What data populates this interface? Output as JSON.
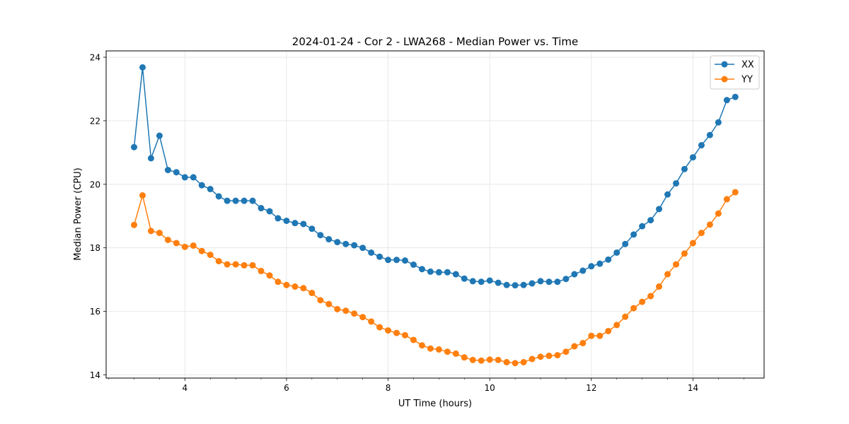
{
  "chart_data": {
    "type": "line",
    "title": "2024-01-24 - Cor 2 - LWA268 - Median Power vs. Time",
    "xlabel": "UT Time (hours)",
    "ylabel": "Median Power (CPU)",
    "xlim": [
      2.45,
      15.4
    ],
    "ylim": [
      13.9,
      24.2
    ],
    "xticks": [
      4,
      6,
      8,
      10,
      12,
      14
    ],
    "xtick_labels": [
      "4",
      "6",
      "8",
      "10",
      "12",
      "14"
    ],
    "xminor_step": 0.5,
    "yticks": [
      14,
      16,
      18,
      20,
      22,
      24
    ],
    "ytick_labels": [
      "14",
      "16",
      "18",
      "20",
      "22",
      "24"
    ],
    "grid": true,
    "legend_position": "top-right",
    "x": [
      3.0,
      3.167,
      3.333,
      3.5,
      3.667,
      3.833,
      4.0,
      4.167,
      4.333,
      4.5,
      4.667,
      4.833,
      5.0,
      5.167,
      5.333,
      5.5,
      5.667,
      5.833,
      6.0,
      6.167,
      6.333,
      6.5,
      6.667,
      6.833,
      7.0,
      7.167,
      7.333,
      7.5,
      7.667,
      7.833,
      8.0,
      8.167,
      8.333,
      8.5,
      8.667,
      8.833,
      9.0,
      9.167,
      9.333,
      9.5,
      9.667,
      9.833,
      10.0,
      10.167,
      10.333,
      10.5,
      10.667,
      10.833,
      11.0,
      11.167,
      11.333,
      11.5,
      11.667,
      11.833,
      12.0,
      12.167,
      12.333,
      12.5,
      12.667,
      12.833,
      13.0,
      13.167,
      13.333,
      13.5,
      13.667,
      13.833,
      14.0,
      14.167,
      14.333,
      14.5,
      14.667,
      14.833
    ],
    "series": [
      {
        "name": "XX",
        "color": "#1f77b4",
        "values": [
          21.17,
          23.68,
          20.82,
          21.53,
          20.45,
          20.38,
          20.22,
          20.22,
          19.97,
          19.85,
          19.62,
          19.48,
          19.48,
          19.48,
          19.48,
          19.25,
          19.15,
          18.93,
          18.85,
          18.78,
          18.75,
          18.6,
          18.4,
          18.27,
          18.18,
          18.12,
          18.08,
          18.0,
          17.85,
          17.72,
          17.62,
          17.62,
          17.6,
          17.47,
          17.33,
          17.25,
          17.23,
          17.23,
          17.17,
          17.03,
          16.95,
          16.93,
          16.97,
          16.9,
          16.83,
          16.82,
          16.83,
          16.88,
          16.95,
          16.93,
          16.93,
          17.02,
          17.17,
          17.28,
          17.42,
          17.5,
          17.63,
          17.85,
          18.12,
          18.42,
          18.68,
          18.87,
          19.22,
          19.68,
          20.03,
          20.48,
          20.85,
          21.23,
          21.55,
          21.95,
          22.65,
          22.75
        ]
      },
      {
        "name": "YY",
        "color": "#ff7f0e",
        "values": [
          18.72,
          19.65,
          18.53,
          18.47,
          18.25,
          18.15,
          18.03,
          18.07,
          17.9,
          17.78,
          17.58,
          17.48,
          17.48,
          17.45,
          17.45,
          17.27,
          17.13,
          16.93,
          16.83,
          16.78,
          16.73,
          16.58,
          16.35,
          16.23,
          16.07,
          16.02,
          15.93,
          15.82,
          15.68,
          15.5,
          15.4,
          15.32,
          15.25,
          15.1,
          14.93,
          14.83,
          14.8,
          14.73,
          14.67,
          14.55,
          14.47,
          14.45,
          14.48,
          14.47,
          14.4,
          14.37,
          14.4,
          14.5,
          14.57,
          14.6,
          14.62,
          14.73,
          14.9,
          15.0,
          15.23,
          15.23,
          15.38,
          15.57,
          15.83,
          16.1,
          16.3,
          16.48,
          16.78,
          17.17,
          17.48,
          17.82,
          18.15,
          18.47,
          18.73,
          19.08,
          19.53,
          19.75
        ]
      }
    ]
  }
}
